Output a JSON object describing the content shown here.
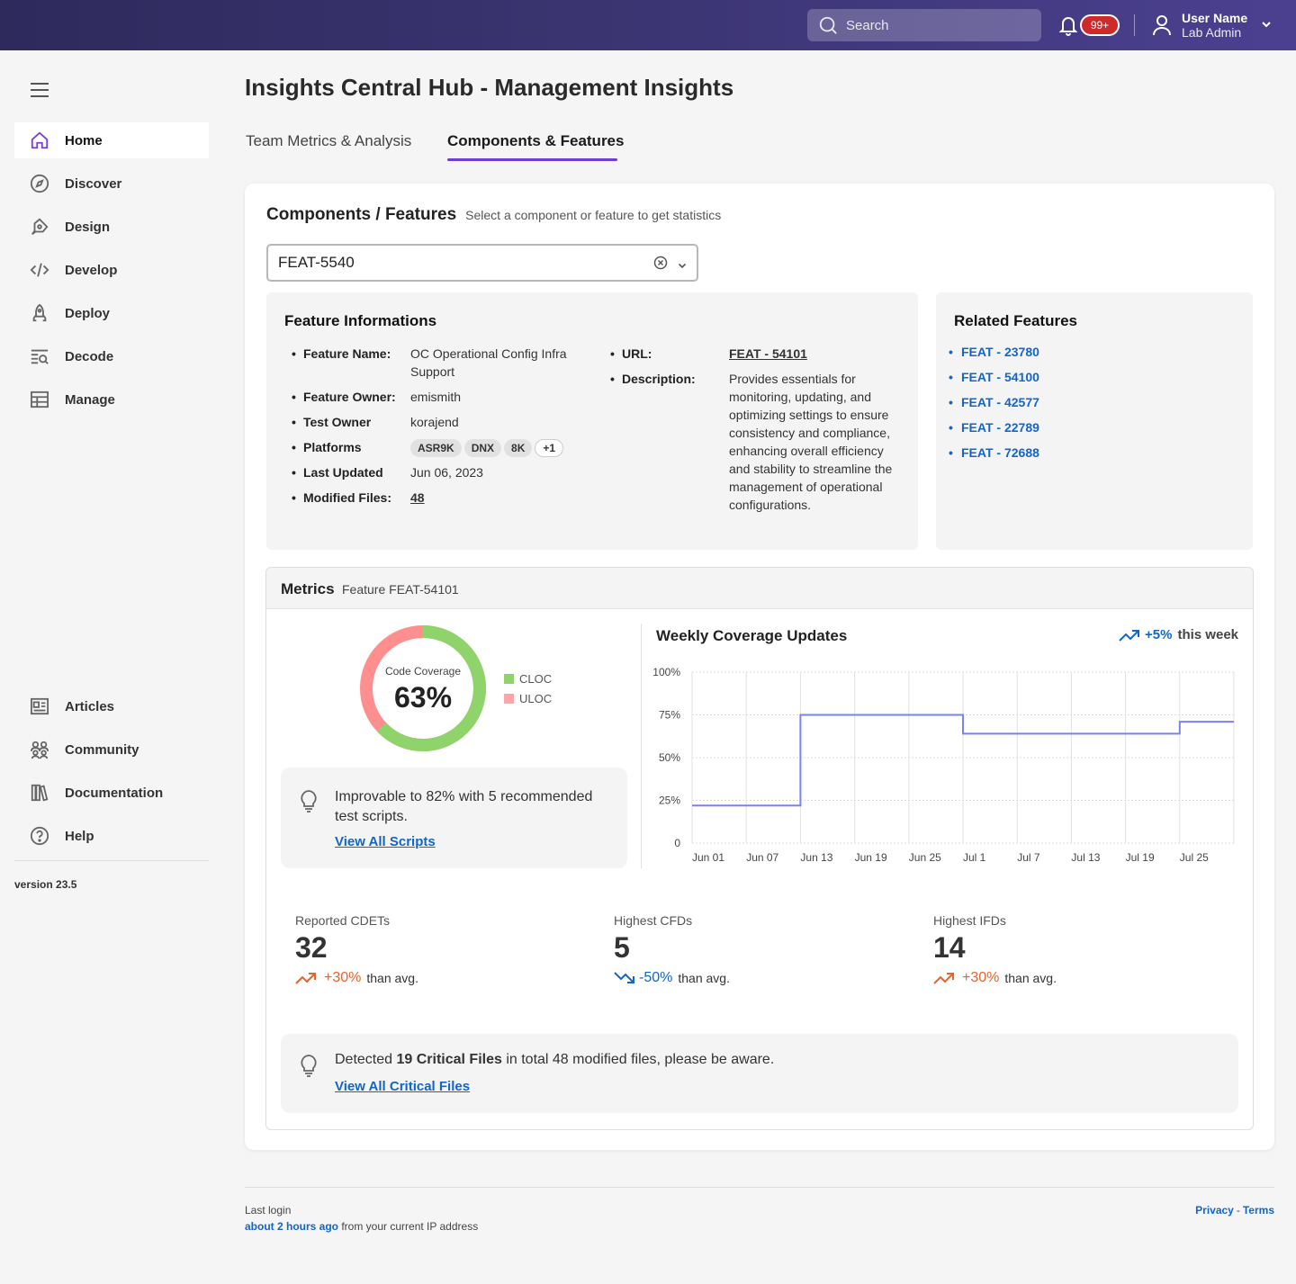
{
  "header": {
    "search_placeholder": "Search",
    "notifications_badge": "99+",
    "user_name": "User Name",
    "user_role": "Lab Admin"
  },
  "sidebar": {
    "items": [
      {
        "label": "Home",
        "icon": "home-icon",
        "active": true
      },
      {
        "label": "Discover",
        "icon": "compass-icon"
      },
      {
        "label": "Design",
        "icon": "pen-icon"
      },
      {
        "label": "Develop",
        "icon": "code-icon"
      },
      {
        "label": "Deploy",
        "icon": "rocket-icon"
      },
      {
        "label": "Decode",
        "icon": "search-list-icon"
      },
      {
        "label": "Manage",
        "icon": "table-icon"
      }
    ],
    "bottom_items": [
      {
        "label": "Articles",
        "icon": "articles-icon"
      },
      {
        "label": "Community",
        "icon": "community-icon"
      },
      {
        "label": "Documentation",
        "icon": "books-icon"
      },
      {
        "label": "Help",
        "icon": "help-icon"
      }
    ],
    "version": "version 23.5"
  },
  "page": {
    "title": "Insights Central Hub - Management Insights",
    "tabs": [
      {
        "label": "Team Metrics & Analysis",
        "active": false
      },
      {
        "label": "Components & Features",
        "active": true
      }
    ]
  },
  "components": {
    "heading": "Components / Features",
    "subheading": "Select a component or feature to get statistics",
    "selected_value": "FEAT-5540"
  },
  "feature_info": {
    "heading": "Feature Informations",
    "name_label": "Feature Name:",
    "name_value": "OC Operational Config Infra Support",
    "owner_label": "Feature Owner:",
    "owner_value": "emismith",
    "test_owner_label": "Test Owner",
    "test_owner_value": "korajend",
    "platforms_label": "Platforms",
    "platforms": [
      "ASR9K",
      "DNX",
      "8K"
    ],
    "platforms_more": "+1",
    "updated_label": "Last Updated",
    "updated_value": "Jun 06, 2023",
    "files_label": "Modified Files:",
    "files_value": "48",
    "url_label": "URL:",
    "url_value": "FEAT - 54101",
    "desc_label": "Description:",
    "desc_value": "Provides essentials for monitoring, updating, and optimizing settings to ensure consistency and compliance, enhancing overall efficiency and stability to streamline the management of operational configurations."
  },
  "related": {
    "heading": "Related Features",
    "items": [
      "FEAT - 23780",
      "FEAT - 54100",
      "FEAT - 42577",
      "FEAT - 22789",
      "FEAT - 72688"
    ]
  },
  "metrics": {
    "heading": "Metrics",
    "subheading": "Feature FEAT-54101",
    "coverage_label": "Code Coverage",
    "coverage_value": "63%",
    "coverage_fraction": 0.63,
    "legend": [
      {
        "label": "CLOC",
        "color": "#8fd46a"
      },
      {
        "label": "ULOC",
        "color": "#ff9a9a"
      }
    ],
    "tip_text": "Improvable to 82% with 5 recommended test scripts.",
    "tip_link": "View All Scripts",
    "chart_title": "Weekly Coverage Updates",
    "chart_trend_value": "+5%",
    "chart_trend_text": "this week",
    "stats": [
      {
        "label": "Reported CDETs",
        "value": "32",
        "change": "+30%",
        "suffix": "than avg.",
        "direction": "up",
        "color": "#e8622c"
      },
      {
        "label": "Highest CFDs",
        "value": "5",
        "change": "-50%",
        "suffix": "than avg.",
        "direction": "down",
        "color": "#1166c8"
      },
      {
        "label": "Highest IFDs",
        "value": "14",
        "change": "+30%",
        "suffix": "than avg.",
        "direction": "up",
        "color": "#e8622c"
      }
    ],
    "critical_prefix": "Detected ",
    "critical_bold": "19 Critical Files",
    "critical_suffix": " in total 48 modified files, please be aware.",
    "critical_link": "View All Critical Files"
  },
  "chart_data": {
    "type": "line",
    "step": true,
    "title": "Weekly Coverage Updates",
    "x": [
      "Jun 01",
      "Jun 07",
      "Jun 13",
      "Jun 19",
      "Jun 25",
      "Jul 1",
      "Jul 7",
      "Jul 13",
      "Jul 19",
      "Jul 25"
    ],
    "y_ticks": [
      "100%",
      "75%",
      "50%",
      "25%",
      "0"
    ],
    "ylim": [
      0,
      100
    ],
    "series": [
      {
        "values": [
          22,
          22,
          75,
          75,
          75,
          64,
          64,
          64,
          64,
          71
        ],
        "color": "#7b83e8"
      }
    ],
    "grid": true
  },
  "footer": {
    "last_login": "Last login",
    "when": "about 2 hours ago",
    "when_suffix": " from your current IP address",
    "privacy": "Privacy",
    "sep": "-",
    "terms": "Terms"
  }
}
